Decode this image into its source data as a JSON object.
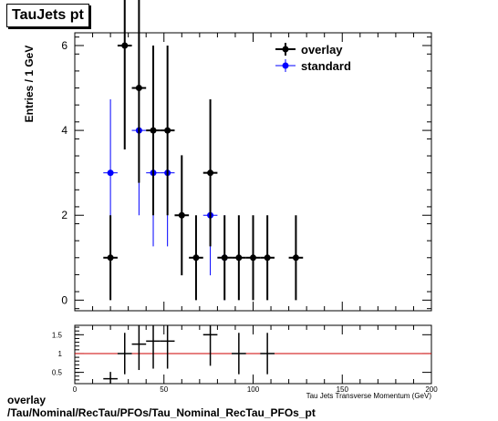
{
  "title": "TauJets pt",
  "footer": {
    "line1": "overlay",
    "line2": "/Tau/Nominal/RecTau/PFOs/Tau_Nominal_RecTau_PFOs_pt"
  },
  "colors": {
    "overlay": "#000000",
    "standard": "#0000ff",
    "ratio_line": "#cc0000"
  },
  "chart_data": [
    {
      "type": "scatter",
      "xlabel": "Tau Jets Transverse Momentum (GeV)",
      "ylabel": "Entries / 1 GeV",
      "xlim": [
        0,
        200
      ],
      "ylim": [
        -0.25,
        6.3
      ],
      "yticks": [
        0,
        2,
        4,
        6
      ],
      "xbin_width": 8,
      "legend_position": "top-right",
      "series": [
        {
          "name": "overlay",
          "x": [
            20,
            28,
            36,
            44,
            52,
            60,
            68,
            76,
            84,
            92,
            100,
            108,
            124
          ],
          "y": [
            1,
            6,
            5,
            4,
            4,
            2,
            1,
            3,
            1,
            1,
            1,
            1,
            1
          ]
        },
        {
          "name": "standard",
          "x": [
            20,
            36,
            44,
            52,
            76,
            84
          ],
          "y": [
            3,
            4,
            3,
            3,
            2,
            1
          ]
        }
      ]
    },
    {
      "type": "scatter",
      "xlim": [
        0,
        200
      ],
      "ylim": [
        0.2,
        1.75
      ],
      "xticks": [
        0,
        50,
        100,
        150,
        200
      ],
      "yticks": [
        0.5,
        1,
        1.5
      ],
      "reference_line": 1,
      "series": [
        {
          "x": [
            20,
            28,
            36,
            44,
            52,
            76,
            92,
            108
          ],
          "y": [
            0.33,
            1.0,
            1.25,
            1.33,
            1.33,
            1.5,
            1.0,
            1.0
          ]
        }
      ]
    }
  ]
}
